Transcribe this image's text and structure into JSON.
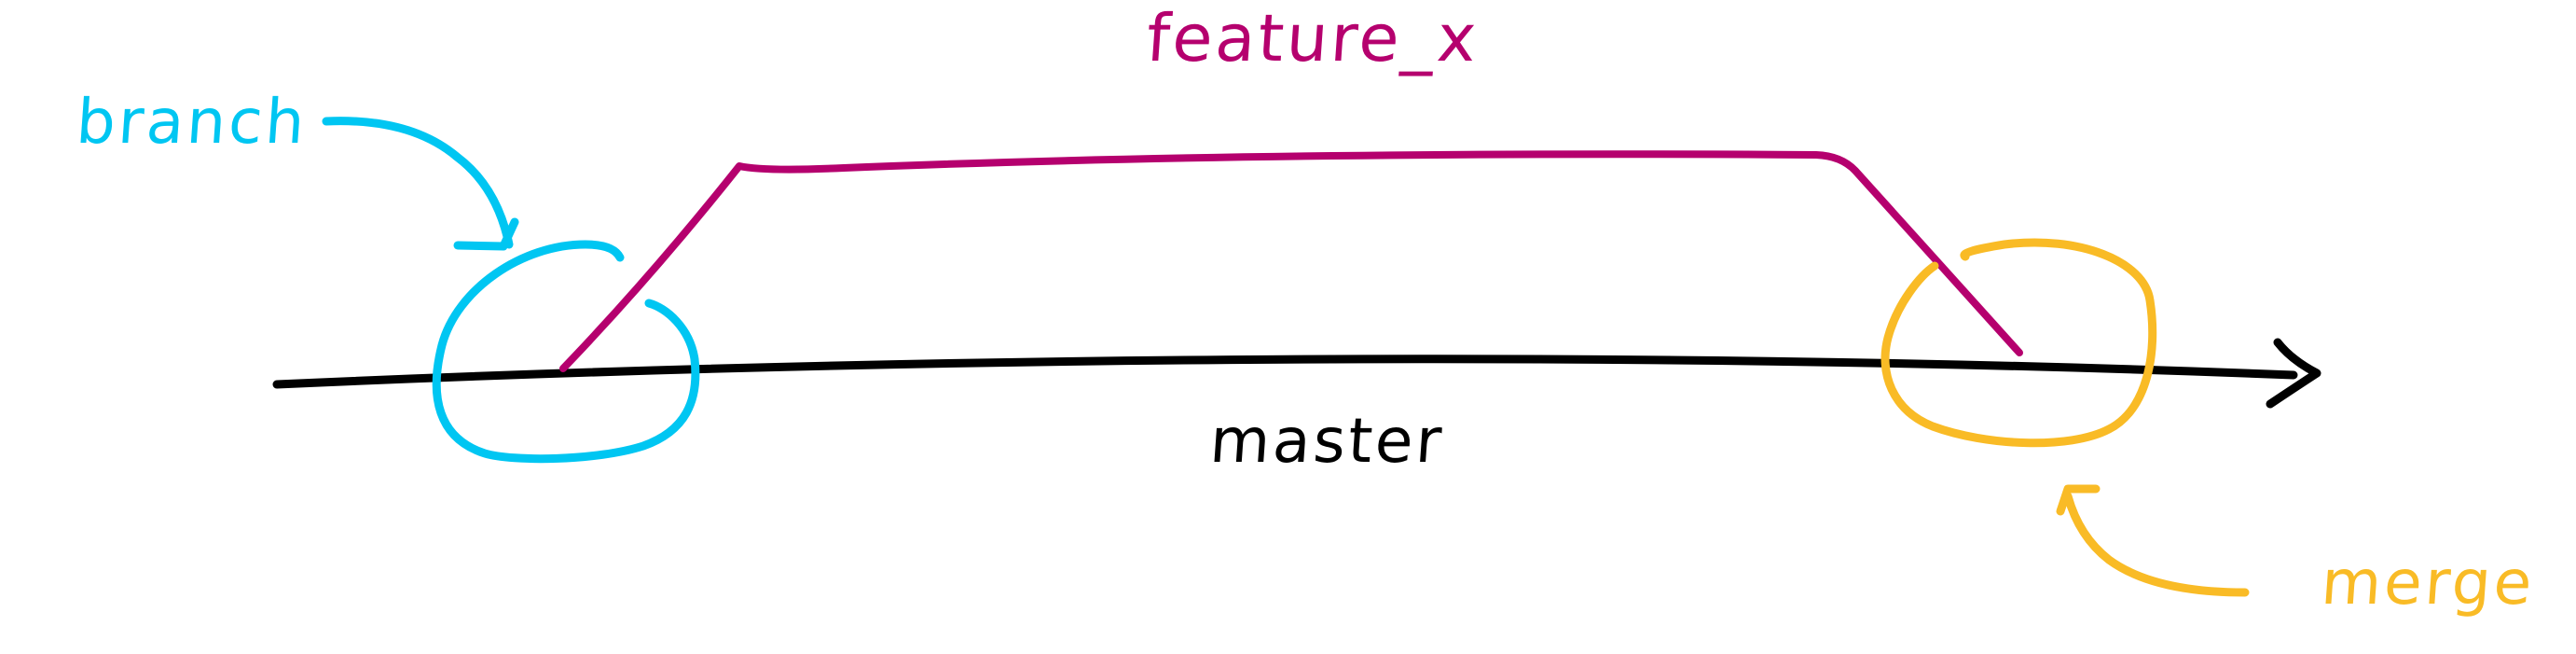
{
  "diagram": {
    "branches": {
      "main": {
        "label": "master",
        "color": "#000000"
      },
      "feature": {
        "label": "feature_x",
        "color": "#b5006e"
      }
    },
    "annotations": {
      "branch": {
        "label": "branch",
        "color": "#00c6f2"
      },
      "merge": {
        "label": "merge",
        "color": "#f9bb26"
      }
    }
  }
}
